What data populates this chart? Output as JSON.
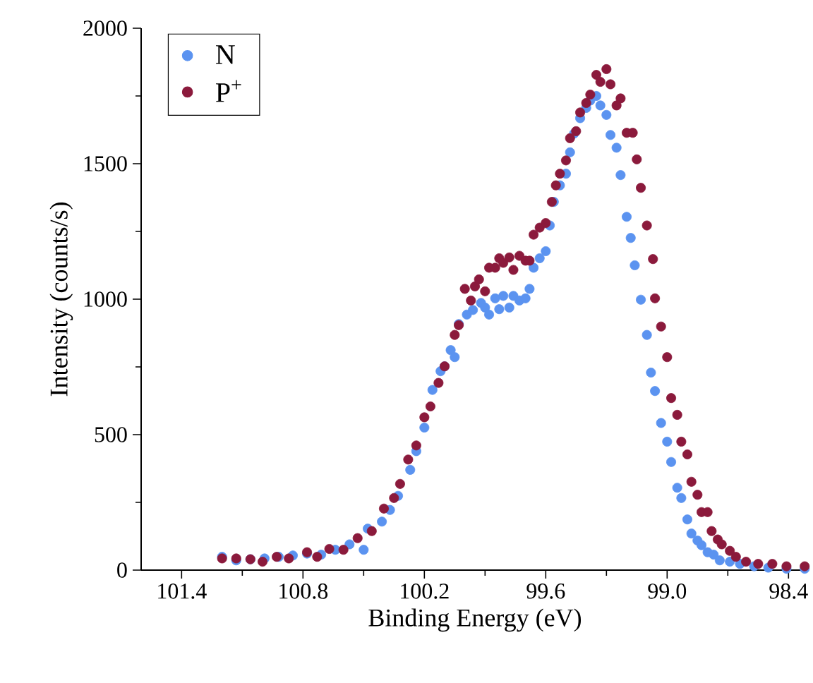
{
  "chart_data": {
    "type": "scatter",
    "xlabel": "Binding Energy (eV)",
    "ylabel": "Intensity (counts/s)",
    "xlim": [
      101.6,
      98.3
    ],
    "ylim": [
      0,
      2000
    ],
    "xticks": [
      101.4,
      {
        "value": 101.1,
        "label": null
      },
      100.8,
      {
        "value": 100.5,
        "label": null
      },
      100.2,
      {
        "value": 99.9,
        "label": null
      },
      99.6,
      {
        "value": 99.3,
        "label": null
      },
      {
        "value": 99,
        "label": "99.0"
      },
      {
        "value": 98.7,
        "label": null
      },
      98.4
    ],
    "yticks": [
      0,
      {
        "value": 250,
        "label": null
      },
      500,
      {
        "value": 750,
        "label": null
      },
      1000,
      {
        "value": 1250,
        "label": null
      },
      1500,
      {
        "value": 1750,
        "label": null
      },
      2000
    ],
    "marker": "circle",
    "legend": "top left",
    "series": [
      {
        "name": "N",
        "color": "#5b93f0",
        "x": [
          101.2,
          101.13,
          101.06,
          100.99,
          100.92,
          100.85,
          100.78,
          100.71,
          100.64,
          100.57,
          100.5,
          100.48,
          100.41,
          100.37,
          100.33,
          100.27,
          100.24,
          100.2,
          100.16,
          100.12,
          100.1,
          100.07,
          100.05,
          100.03,
          99.99,
          99.96,
          99.92,
          99.9,
          99.88,
          99.85,
          99.83,
          99.81,
          99.78,
          99.76,
          99.73,
          99.7,
          99.68,
          99.66,
          99.63,
          99.6,
          99.58,
          99.56,
          99.53,
          99.5,
          99.48,
          99.46,
          99.43,
          99.4,
          99.38,
          99.35,
          99.33,
          99.3,
          99.28,
          99.25,
          99.23,
          99.2,
          99.18,
          99.16,
          99.13,
          99.1,
          99.08,
          99.06,
          99.03,
          99.0,
          98.98,
          98.95,
          98.93,
          98.9,
          98.88,
          98.85,
          98.83,
          98.8,
          98.77,
          98.74,
          98.69,
          98.64,
          98.57,
          98.5,
          98.41,
          98.32
        ],
        "values": [
          49,
          36,
          40,
          43,
          49,
          54,
          61,
          57,
          75,
          95,
          75,
          153,
          179,
          222,
          274,
          370,
          439,
          526,
          665,
          734,
          752,
          812,
          786,
          908,
          943,
          960,
          986,
          969,
          943,
          1003,
          963,
          1012,
          969,
          1012,
          995,
          1003,
          1038,
          1116,
          1151,
          1177,
          1272,
          1359,
          1420,
          1463,
          1542,
          1611,
          1668,
          1706,
          1733,
          1750,
          1715,
          1680,
          1606,
          1559,
          1458,
          1304,
          1226,
          1125,
          998,
          868,
          729,
          661,
          543,
          474,
          399,
          304,
          266,
          187,
          135,
          109,
          92,
          66,
          57,
          36,
          31,
          23,
          14,
          9,
          5,
          5
        ]
      },
      {
        "name": "P$^{+}$",
        "color": "#8b1a3c",
        "x": [
          101.2,
          101.13,
          101.06,
          101.0,
          100.93,
          100.87,
          100.78,
          100.73,
          100.67,
          100.6,
          100.53,
          100.46,
          100.4,
          100.35,
          100.32,
          100.28,
          100.24,
          100.2,
          100.17,
          100.13,
          100.1,
          100.05,
          100.03,
          100.0,
          99.97,
          99.95,
          99.93,
          99.9,
          99.88,
          99.85,
          99.83,
          99.81,
          99.78,
          99.76,
          99.73,
          99.7,
          99.68,
          99.66,
          99.63,
          99.6,
          99.57,
          99.55,
          99.53,
          99.5,
          99.48,
          99.45,
          99.43,
          99.4,
          99.38,
          99.35,
          99.33,
          99.3,
          99.28,
          99.25,
          99.23,
          99.2,
          99.17,
          99.15,
          99.13,
          99.1,
          99.07,
          99.06,
          99.03,
          99.0,
          98.98,
          98.95,
          98.93,
          98.9,
          98.88,
          98.85,
          98.83,
          98.8,
          98.78,
          98.75,
          98.73,
          98.69,
          98.66,
          98.61,
          98.55,
          98.48,
          98.41,
          98.32
        ],
        "values": [
          43,
          43,
          40,
          31,
          49,
          43,
          66,
          49,
          78,
          75,
          118,
          144,
          227,
          266,
          318,
          408,
          460,
          564,
          604,
          691,
          752,
          868,
          904,
          1038,
          995,
          1047,
          1073,
          1029,
          1116,
          1116,
          1151,
          1134,
          1154,
          1108,
          1160,
          1142,
          1142,
          1238,
          1264,
          1281,
          1359,
          1420,
          1463,
          1512,
          1594,
          1620,
          1689,
          1724,
          1755,
          1828,
          1802,
          1849,
          1793,
          1715,
          1741,
          1614,
          1614,
          1516,
          1411,
          1272,
          1148,
          1003,
          899,
          786,
          635,
          573,
          474,
          427,
          326,
          278,
          214,
          214,
          144,
          113,
          95,
          71,
          49,
          31,
          23,
          23,
          14,
          14
        ]
      }
    ]
  }
}
